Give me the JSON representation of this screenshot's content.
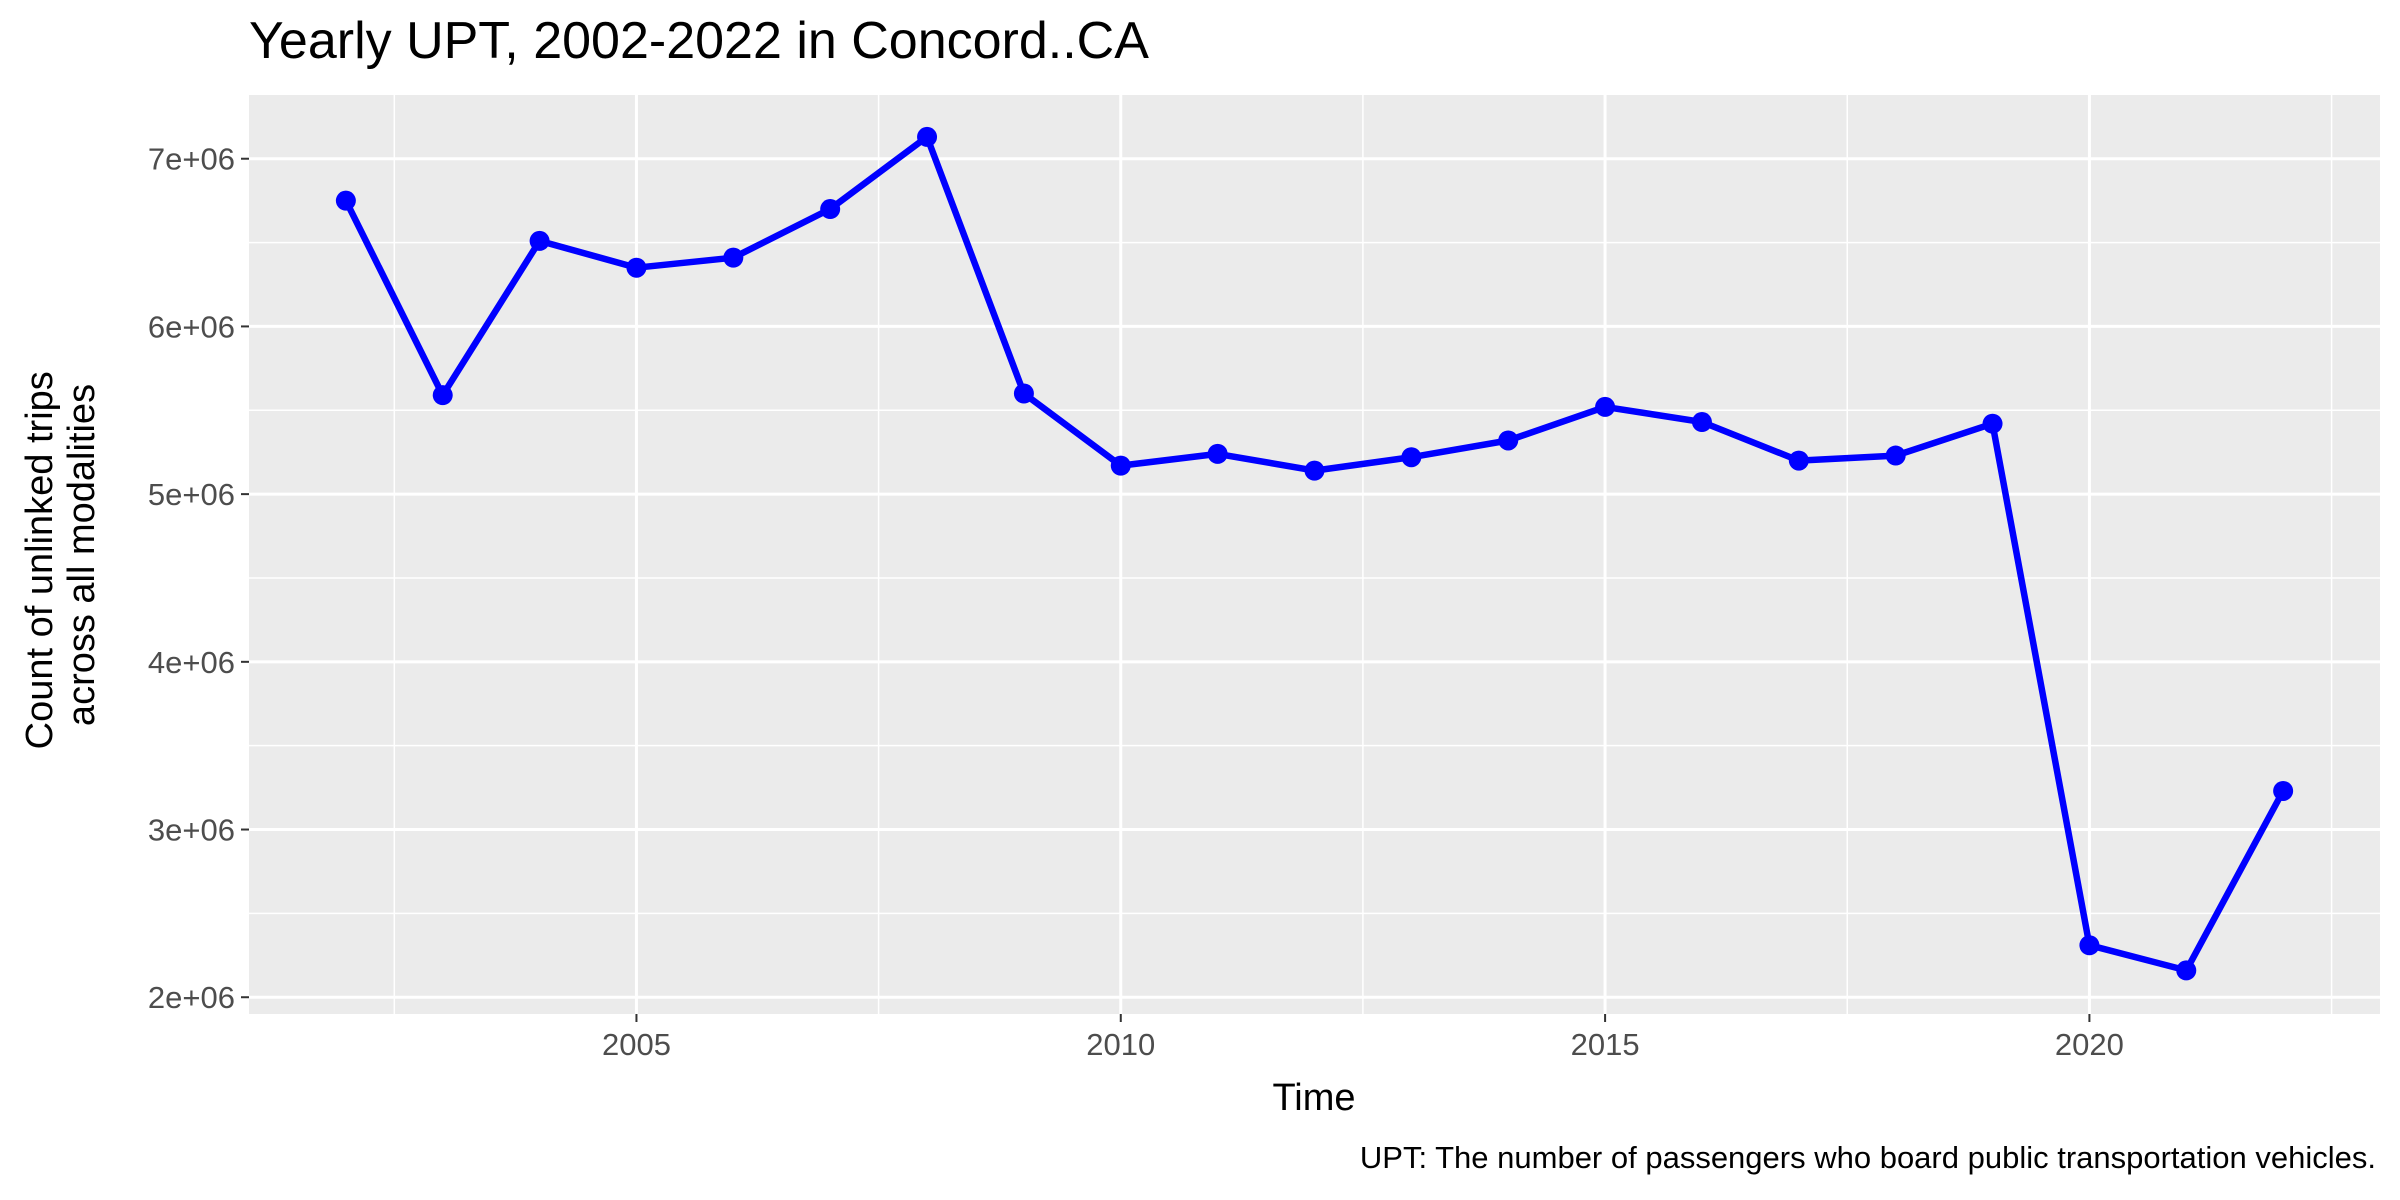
{
  "chart_data": {
    "type": "line",
    "title": "Yearly UPT, 2002-2022 in Concord..CA",
    "xlabel": "Time",
    "ylabel": [
      "Count of unlinked trips",
      "across all modalities"
    ],
    "caption": "UPT: The number of passengers who board public transportation vehicles.",
    "x_ticks": [
      2005,
      2010,
      2015,
      2020
    ],
    "x_tick_labels": [
      "2005",
      "2010",
      "2015",
      "2020"
    ],
    "y_ticks": [
      2000000,
      3000000,
      4000000,
      5000000,
      6000000,
      7000000
    ],
    "y_tick_labels": [
      "2e+06",
      "3e+06",
      "4e+06",
      "5e+06",
      "6e+06",
      "7e+06"
    ],
    "xlim": [
      2001,
      2023
    ],
    "ylim": [
      1900000,
      7380000
    ],
    "grid": true,
    "legend": "none",
    "colors": {
      "series": "#0000ff",
      "panel": "#ebebeb",
      "grid": "#ffffff",
      "tick_text": "#4d4d4d",
      "tick_mark": "#333333"
    },
    "series": [
      {
        "x": [
          2002,
          2003,
          2004,
          2005,
          2006,
          2007,
          2008,
          2009,
          2010,
          2011,
          2012,
          2013,
          2014,
          2015,
          2016,
          2017,
          2018,
          2019,
          2020,
          2021,
          2022
        ],
        "values": [
          6750000,
          5590000,
          6510000,
          6350000,
          6410000,
          6700000,
          7130000,
          5600000,
          5170000,
          5240000,
          5140000,
          5220000,
          5320000,
          5520000,
          5430000,
          5200000,
          5230000,
          5420000,
          2310000,
          2160000,
          3230000
        ]
      }
    ]
  }
}
